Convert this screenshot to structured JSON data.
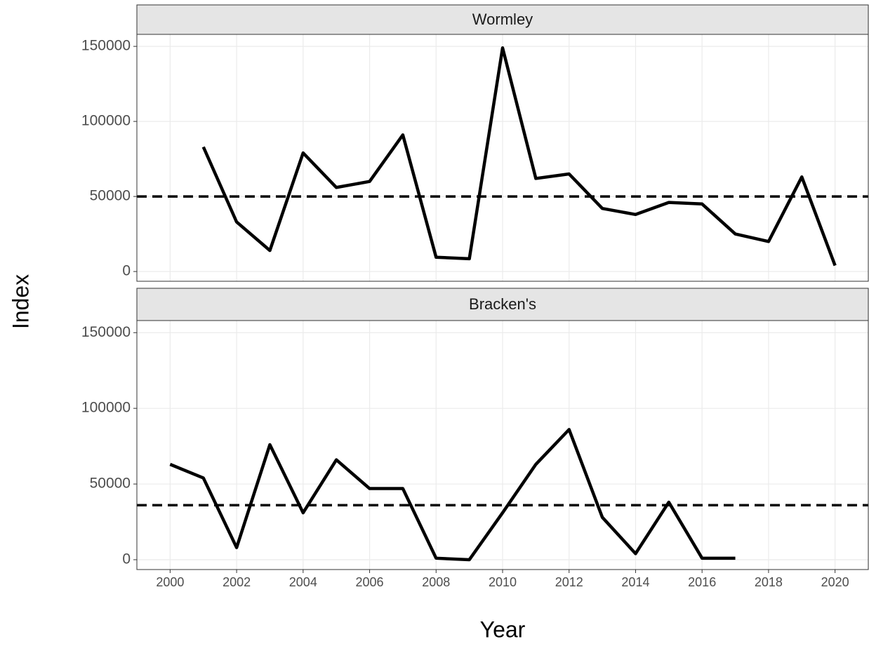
{
  "chart_data": {
    "type": "line",
    "xlabel": "Year",
    "ylabel": "Index",
    "xlim": [
      1999,
      2021
    ],
    "xticks": [
      2000,
      2002,
      2004,
      2006,
      2008,
      2010,
      2012,
      2014,
      2016,
      2018,
      2020
    ],
    "grid": true,
    "color": "#000000",
    "panels": [
      {
        "title": "Wormley",
        "x": [
          2001,
          2002,
          2003,
          2004,
          2005,
          2006,
          2007,
          2008,
          2009,
          2010,
          2011,
          2012,
          2013,
          2014,
          2015,
          2016,
          2017,
          2018,
          2019,
          2020
        ],
        "values": [
          83000,
          33000,
          14000,
          79000,
          56000,
          60000,
          91000,
          9500,
          8500,
          149000,
          62000,
          65000,
          42000,
          38000,
          46000,
          45000,
          25000,
          20000,
          63000,
          4000
        ],
        "hline": 50000,
        "ylim": [
          -6500,
          158000
        ],
        "yticks": [
          0,
          50000,
          100000,
          150000
        ]
      },
      {
        "title": "Bracken's",
        "x": [
          2000,
          2001,
          2002,
          2003,
          2004,
          2005,
          2006,
          2007,
          2008,
          2009,
          2010,
          2011,
          2012,
          2013,
          2014,
          2015,
          2016,
          2017
        ],
        "values": [
          63000,
          54000,
          8000,
          76000,
          31000,
          66000,
          47000,
          47000,
          1000,
          0,
          31000,
          63000,
          86000,
          28000,
          4000,
          38000,
          1000,
          1000
        ],
        "hline": 36000,
        "ylim": [
          -6500,
          158000
        ],
        "yticks": [
          0,
          50000,
          100000,
          150000
        ]
      }
    ]
  }
}
